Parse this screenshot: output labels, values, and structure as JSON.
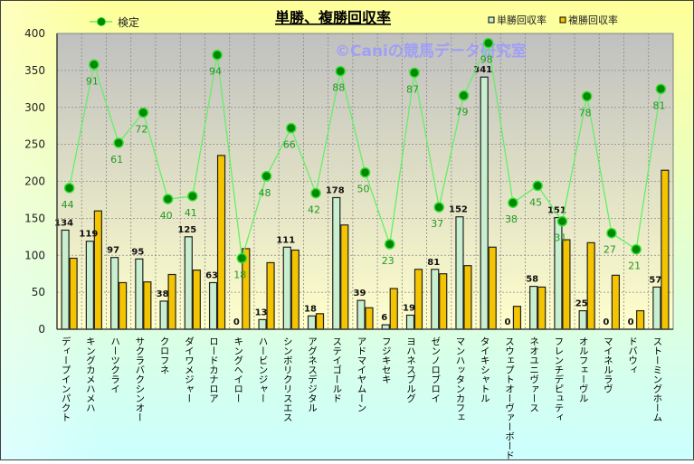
{
  "chart_data": {
    "type": "bar",
    "title": "単勝、複勝回収率",
    "watermark": "©Caniの競馬データ研究室",
    "ylim": [
      0,
      400
    ],
    "yticks": [
      0,
      50,
      100,
      150,
      200,
      250,
      300,
      350,
      400
    ],
    "grid": true,
    "legend_placement": "top",
    "categories": [
      "ディープインパクト",
      "キングカメハメハ",
      "ハーツクライ",
      "サクラバクシンオー",
      "クロフネ",
      "ダイワメジャー",
      "ロードカナロア",
      "キングヘイロー",
      "ハービンジャー",
      "シンボリクリスエス",
      "アグネスデジタル",
      "ステイゴールド",
      "アドマイヤムーン",
      "フジキセキ",
      "ヨハネスブルグ",
      "ゼンノロブロイ",
      "マンハッタンカフェ",
      "タイキシャトル",
      "スウェプトオーヴァーボード",
      "ネオユニヴァース",
      "フレンチデピュティ",
      "オルフェーヴル",
      "マイネルラヴ",
      "ドバウィ",
      "ストーミングホーム"
    ],
    "series": [
      {
        "name": "単勝回収率",
        "type": "bar",
        "color": "#c8f0d0",
        "show_labels": true,
        "values": [
          134,
          119,
          97,
          95,
          38,
          125,
          63,
          0,
          13,
          111,
          18,
          178,
          39,
          6,
          19,
          81,
          152,
          341,
          0,
          58,
          151,
          25,
          0,
          0,
          57
        ]
      },
      {
        "name": "複勝回収率",
        "type": "bar",
        "color": "#f5c400",
        "show_labels": false,
        "values": [
          96,
          160,
          63,
          64,
          74,
          80,
          235,
          109,
          90,
          107,
          21,
          141,
          29,
          55,
          81,
          75,
          86,
          111,
          31,
          57,
          121,
          117,
          73,
          25,
          215
        ]
      },
      {
        "name": "検定",
        "type": "line",
        "color": "#66ee66",
        "marker_color": "#008800",
        "values": [
          191,
          358,
          252,
          293,
          176,
          180,
          371,
          96,
          207,
          272,
          184,
          349,
          212,
          115,
          347,
          165,
          316,
          387,
          171,
          194,
          146,
          315,
          130,
          108,
          325
        ],
        "labels": [
          44,
          91,
          61,
          72,
          40,
          41,
          94,
          18,
          48,
          66,
          42,
          88,
          50,
          23,
          87,
          37,
          79,
          98,
          38,
          45,
          31,
          78,
          27,
          21,
          81
        ]
      }
    ]
  }
}
